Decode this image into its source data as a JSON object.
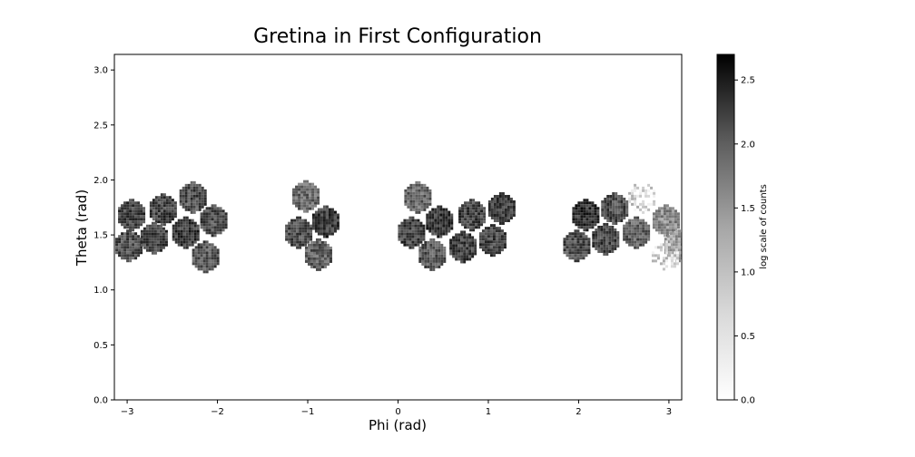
{
  "chart_data": {
    "type": "heatmap",
    "title": "Gretina in First Configuration",
    "xlabel": "Phi (rad)",
    "ylabel": "Theta (rad)",
    "xlim": [
      -3.1416,
      3.1416
    ],
    "ylim": [
      0,
      3.1416
    ],
    "x_ticks": [
      -3,
      -2,
      -1,
      0,
      1,
      2,
      3
    ],
    "x_tick_labels": [
      "−3",
      "−2",
      "−1",
      "0",
      "1",
      "2",
      "3"
    ],
    "y_ticks": [
      0.0,
      0.5,
      1.0,
      1.5,
      2.0,
      2.5,
      3.0
    ],
    "y_tick_labels": [
      "0.0",
      "0.5",
      "1.0",
      "1.5",
      "2.0",
      "2.5",
      "3.0"
    ],
    "colormap": "gray_r",
    "grid": false,
    "colorbar": {
      "label": "log scale of counts",
      "range": [
        0,
        2.7
      ],
      "ticks": [
        0.0,
        0.5,
        1.0,
        1.5,
        2.0,
        2.5
      ],
      "tick_labels": [
        "0.0",
        "0.5",
        "1.0",
        "1.5",
        "2.0",
        "2.5"
      ]
    },
    "detectors": [
      {
        "phi": -2.95,
        "theta": 1.68,
        "level": 2.0
      },
      {
        "phi": -2.6,
        "theta": 1.73,
        "level": 2.0
      },
      {
        "phi": -2.27,
        "theta": 1.84,
        "level": 1.9
      },
      {
        "phi": -2.04,
        "theta": 1.63,
        "level": 1.9
      },
      {
        "phi": -2.98,
        "theta": 1.4,
        "level": 1.9
      },
      {
        "phi": -2.7,
        "theta": 1.47,
        "level": 2.0
      },
      {
        "phi": -2.35,
        "theta": 1.52,
        "level": 2.1
      },
      {
        "phi": -2.13,
        "theta": 1.3,
        "level": 1.8
      },
      {
        "phi": -1.02,
        "theta": 1.85,
        "level": 1.6
      },
      {
        "phi": -0.8,
        "theta": 1.62,
        "level": 2.1
      },
      {
        "phi": -1.1,
        "theta": 1.52,
        "level": 1.9
      },
      {
        "phi": -0.88,
        "theta": 1.32,
        "level": 1.7
      },
      {
        "phi": 0.22,
        "theta": 1.84,
        "level": 1.6
      },
      {
        "phi": 0.46,
        "theta": 1.62,
        "level": 2.1
      },
      {
        "phi": 0.15,
        "theta": 1.52,
        "level": 2.0
      },
      {
        "phi": 0.38,
        "theta": 1.32,
        "level": 1.8
      },
      {
        "phi": 0.82,
        "theta": 1.68,
        "level": 2.0
      },
      {
        "phi": 1.15,
        "theta": 1.74,
        "level": 2.0
      },
      {
        "phi": 0.72,
        "theta": 1.39,
        "level": 2.0
      },
      {
        "phi": 1.05,
        "theta": 1.45,
        "level": 2.0
      },
      {
        "phi": 2.08,
        "theta": 1.68,
        "level": 2.2
      },
      {
        "phi": 2.4,
        "theta": 1.74,
        "level": 1.9
      },
      {
        "phi": 1.98,
        "theta": 1.4,
        "level": 1.9
      },
      {
        "phi": 2.3,
        "theta": 1.46,
        "level": 2.0
      },
      {
        "phi": 2.64,
        "theta": 1.52,
        "level": 1.7
      },
      {
        "phi": 2.97,
        "theta": 1.63,
        "level": 1.2
      },
      {
        "phi": 2.7,
        "theta": 1.84,
        "level": 0.5
      },
      {
        "phi": 3.1,
        "theta": 1.4,
        "level": 1.0
      },
      {
        "phi": 2.96,
        "theta": 1.3,
        "level": 0.5
      }
    ]
  }
}
